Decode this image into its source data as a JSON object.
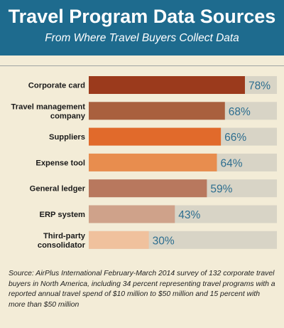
{
  "title": "Travel Program Data Sources",
  "subtitle": "From Where Travel Buyers Collect Data",
  "source": "Source: AirPlus International February-March 2014 survey of 132 corporate travel buyers in North America, including 34 percent representing travel programs with a reported annual travel spend of $10 million to $50 million and 15 percent with more than $50 million",
  "colors": {
    "header": "#1e6b8e",
    "background": "#f3ecd7",
    "track": "#d8d4c6",
    "value_text": "#2d6e8f",
    "rule": "#9fa4a3"
  },
  "chart_data": {
    "type": "bar",
    "orientation": "horizontal",
    "categories": [
      [
        "Corporate card"
      ],
      [
        "Travel management",
        "company"
      ],
      [
        "Suppliers"
      ],
      [
        "Expense tool"
      ],
      [
        "General ledger"
      ],
      [
        "ERP system"
      ],
      [
        "Third-party",
        "consolidator"
      ]
    ],
    "values": [
      78,
      68,
      66,
      64,
      59,
      43,
      30
    ],
    "value_labels": [
      "78%",
      "68%",
      "66%",
      "64%",
      "59%",
      "43%",
      "30%"
    ],
    "bar_colors": [
      "#9b3a1c",
      "#a9603e",
      "#e16a2b",
      "#e88d4e",
      "#b8785e",
      "#cfa28a",
      "#f0c19d"
    ],
    "xlim": [
      0,
      100
    ],
    "grid": false,
    "legend": "none"
  }
}
